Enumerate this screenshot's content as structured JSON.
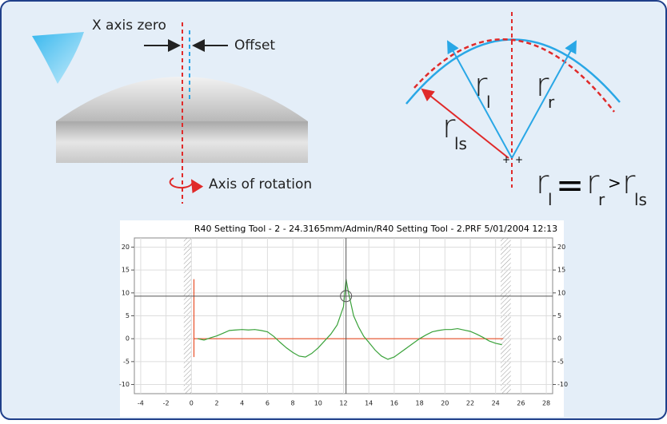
{
  "diagram": {
    "x_axis_zero": "X axis zero",
    "offset": "Offset",
    "axis_of_rotation": "Axis of rotation",
    "radius_labels": [
      {
        "symbol": "r",
        "subscript": "l"
      },
      {
        "symbol": "r",
        "subscript": "r"
      },
      {
        "symbol": "r",
        "subscript": "ls"
      }
    ],
    "equation": {
      "terms": [
        {
          "symbol": "r",
          "subscript": "l"
        },
        {
          "symbol": "r",
          "subscript": "r"
        },
        {
          "symbol": "r",
          "subscript": "ls"
        }
      ],
      "operators": [
        "=",
        ">"
      ]
    }
  },
  "chart_data": {
    "type": "line",
    "title": "R40 Setting Tool - 2 - 24.3165mm/Admin/R40 Setting Tool - 2.PRF 5/01/2004 12:13",
    "xlim": [
      -4.5,
      28.5
    ],
    "ylim": [
      -12,
      22
    ],
    "xticks": [
      -4,
      -2,
      0,
      2,
      4,
      6,
      8,
      10,
      12,
      14,
      16,
      18,
      20,
      22,
      24,
      26,
      28
    ],
    "yticks": [
      -10,
      -5,
      0,
      5,
      10,
      15,
      20
    ],
    "grid": true,
    "cursor": {
      "x": 12.2,
      "y": 9.3
    },
    "excluded_ranges": [
      [
        -0.6,
        0
      ],
      [
        24.4,
        25.2
      ]
    ],
    "series": [
      {
        "color": "#e8502a",
        "x": [
          0.2,
          0.2,
          0.2,
          24.6
        ],
        "values": [
          13,
          -4,
          0,
          0
        ]
      },
      {
        "color": "#3aa23a",
        "x": [
          0.5,
          1,
          1.5,
          2,
          2.5,
          3,
          3.5,
          4,
          4.5,
          5,
          5.5,
          6,
          6.5,
          7,
          7.5,
          8,
          8.5,
          9,
          9.5,
          10,
          10.5,
          11,
          11.5,
          12,
          12.2,
          12.4,
          12.8,
          13.2,
          13.6,
          14,
          14.5,
          15,
          15.5,
          16,
          16.5,
          17,
          17.5,
          18,
          18.5,
          19,
          19.5,
          20,
          20.5,
          21,
          21.5,
          22,
          22.5,
          23,
          23.5,
          24,
          24.5
        ],
        "values": [
          0,
          -0.3,
          0.2,
          0.6,
          1.2,
          1.8,
          1.9,
          2,
          1.9,
          2,
          1.8,
          1.5,
          0.5,
          -0.8,
          -2,
          -3,
          -3.8,
          -4,
          -3.2,
          -2,
          -0.5,
          1,
          3,
          7,
          13,
          10,
          5,
          2.5,
          0.5,
          -0.8,
          -2.5,
          -3.8,
          -4.5,
          -4,
          -3,
          -2,
          -1,
          0,
          0.8,
          1.5,
          1.8,
          2,
          2,
          2.2,
          1.9,
          1.6,
          1,
          0.3,
          -0.5,
          -1,
          -1.3
        ]
      }
    ]
  }
}
